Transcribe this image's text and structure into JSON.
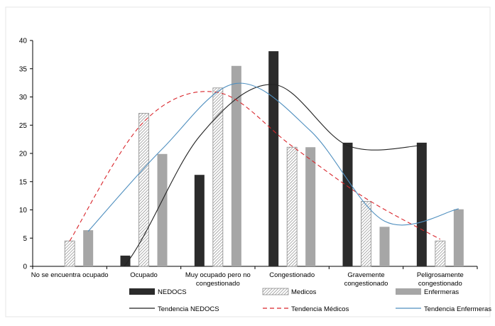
{
  "chart_data": {
    "type": "bar",
    "title": "",
    "xlabel": "",
    "ylabel": "",
    "ylim": [
      0,
      40
    ],
    "yticks": [
      0,
      5,
      10,
      15,
      20,
      25,
      30,
      35,
      40
    ],
    "grid": false,
    "legend_position": "bottom",
    "categories": [
      [
        "No se encuentra ocupado"
      ],
      [
        "Ocupado"
      ],
      [
        "Muy ocupado pero no",
        "congestionado"
      ],
      [
        "Congestionado"
      ],
      [
        "Gravemente",
        "congestionado"
      ],
      [
        "Peligrosamente",
        "congestionado"
      ]
    ],
    "series": [
      {
        "name": "NEDOCS",
        "pattern": "solid",
        "color": "#2b2b2b",
        "values": [
          0,
          1.9,
          16.2,
          38.1,
          21.9,
          21.9
        ]
      },
      {
        "name": "Medicos",
        "pattern": "hatch",
        "color": "#8c8c8c",
        "values": [
          4.5,
          27.1,
          31.6,
          21.1,
          11.5,
          4.5
        ]
      },
      {
        "name": "Enfermeras",
        "pattern": "solid",
        "color": "#a6a6a6",
        "values": [
          6.4,
          19.9,
          35.5,
          21.1,
          7.0,
          10.1
        ]
      }
    ],
    "trendlines": [
      {
        "name": "Tendencia NEDOCS",
        "color": "#222222",
        "dash": "",
        "type": "polynomial",
        "values": [
          -10.8,
          0.25,
          23.0,
          32.2,
          21.4,
          21.4
        ]
      },
      {
        "name": "Tendencia Médicos",
        "color": "#d9262c",
        "dash": "6,4",
        "type": "polynomial",
        "values": [
          4.5,
          25.6,
          30.8,
          21.3,
          12.0,
          4.8
        ]
      },
      {
        "name": "Tendencia Enfermeras",
        "color": "#4f8fbf",
        "dash": "",
        "type": "polynomial",
        "values": [
          6.2,
          20.8,
          32.4,
          24.0,
          8.0,
          10.2
        ]
      }
    ]
  }
}
